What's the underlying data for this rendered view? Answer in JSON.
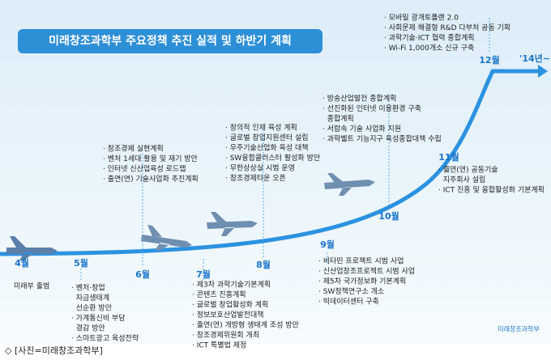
{
  "title": "미래창조과학부 주요정책 추진 실적 및 하반기 계획",
  "months": [
    {
      "label": "4월",
      "items": [
        "미래부 출범"
      ]
    },
    {
      "label": "5월",
      "items": [
        "· 벤처·창업",
        "  자금생태계",
        "  선순환 방안",
        "· 가계통신비 부담",
        "  경감 방안",
        "· 스마트광고 육성전략"
      ]
    },
    {
      "label": "6월",
      "items": [
        "· 창조경제 실현계획",
        "· 벤처 1세대 활용 및 재기 방안",
        "· 인터넷 신산업육성 로드맵",
        "· 출연(연) 기술사업화 추진계획"
      ]
    },
    {
      "label": "7월",
      "items": [
        "· 제3차 과학기술기본계획",
        "· 콘텐츠 진흥계획",
        "· 글로벌 창업활성화 계획",
        "· 정보보호산업발전대책",
        "· 출연(연) 개방형 생태계 조성 방안",
        "· 창조경제위원회 개최",
        "· ICT 특별법 제정"
      ]
    },
    {
      "label": "8월",
      "items": [
        "· 창의적 인재 육성 계획",
        "· 글로벌 창업지원센터 설립",
        "· 우주기술산업화 육성 대책",
        "· SW융합클러스터 활성화 방안",
        "· 무한상상실 시범 운영",
        "· 창조경제타운 오픈"
      ]
    },
    {
      "label": "9월",
      "items": [
        "· 비타민 프로젝트 시범 사업",
        "· 신산업창조프로젝트 시범 사업",
        "· 제5차 국가정보화 기본계획",
        "· SW정책연구소 개소",
        "· 빅데이터센터 구축"
      ]
    },
    {
      "label": "10월",
      "items": [
        "· 방송산업발전 종합계획",
        "· 선진화된 인터넷 이용환경 구축",
        "  종합계획",
        "· 서랍속 기술 사업화 지원",
        "· 과학벨트 기능지구 육성종합대책 수립"
      ]
    },
    {
      "label": "11월",
      "items": [
        "· 출연(연) 공동기술",
        "  지주회사 설립",
        "· ICT 진흥 및 융합활성화 기본계획"
      ]
    },
    {
      "label": "12월",
      "items": [
        "· 모바일 광개토플랜 2.0",
        "· 사회문제 해결형 R&D 다부처 공동 기획",
        "· 과학기술·ICT 협력 종합계획",
        "· Wi-Fi 1,000개소 신규 구축"
      ]
    }
  ],
  "future": "'14년~",
  "logo": "미래창조과학부",
  "caption": "◇ [사진=미래창조과학부]"
}
